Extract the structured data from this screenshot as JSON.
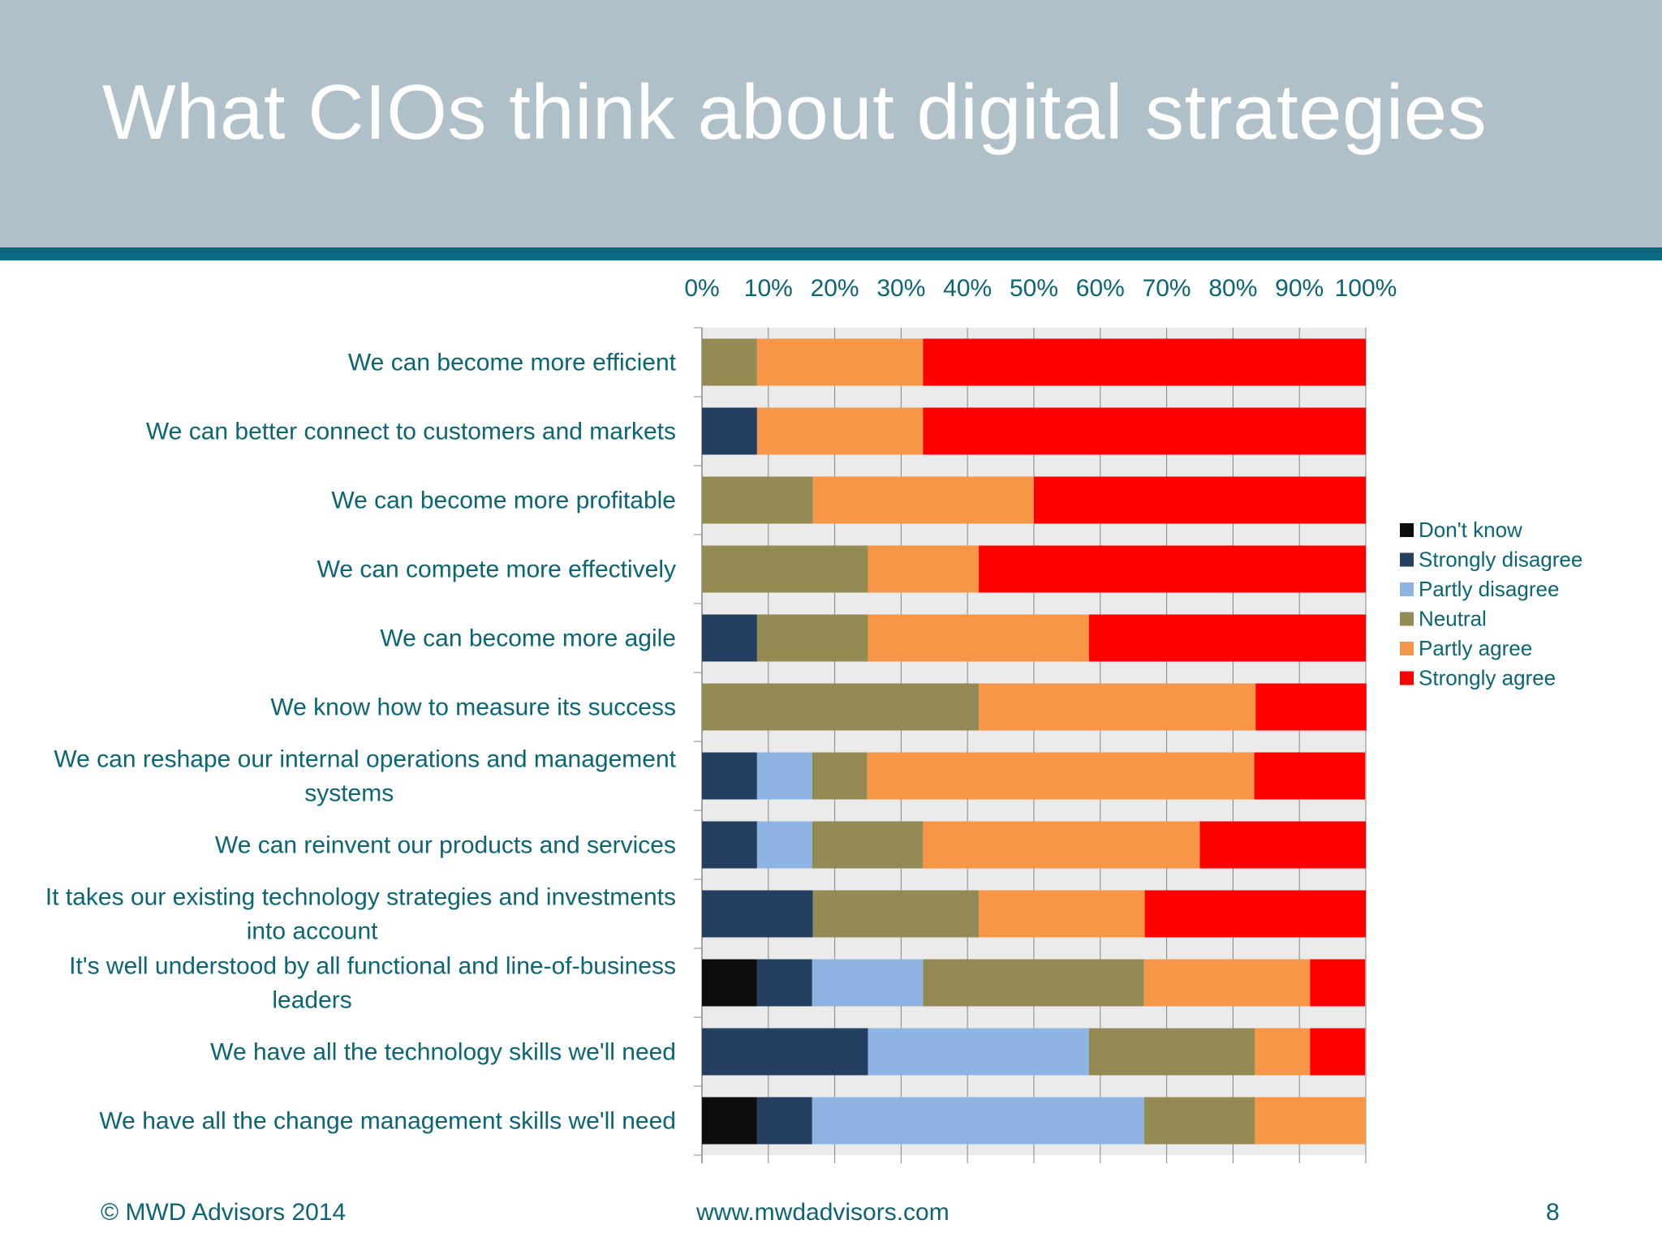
{
  "slide": {
    "title": "What CIOs think about digital strategies"
  },
  "footer": {
    "copyright": "© MWD Advisors 2014",
    "url": "www.mwdadvisors.com",
    "page_number": "8"
  },
  "chart_data": {
    "type": "bar",
    "orientation": "horizontal",
    "stacked": "percent",
    "xlim": [
      0,
      100
    ],
    "tick_labels": [
      "0%",
      "10%",
      "20%",
      "30%",
      "40%",
      "50%",
      "60%",
      "70%",
      "80%",
      "90%",
      "100%"
    ],
    "grid": true,
    "legend_position": "right",
    "categories": [
      [
        "We can become more efficient"
      ],
      [
        "We can better connect to customers and markets"
      ],
      [
        "We can become more profitable"
      ],
      [
        "We can compete more effectively"
      ],
      [
        "We can become more agile"
      ],
      [
        "We know how to measure its success"
      ],
      [
        "We can reshape our internal operations and management",
        "systems"
      ],
      [
        "We can reinvent our products and services"
      ],
      [
        "It takes our existing technology strategies and investments",
        "into account"
      ],
      [
        "It's well understood by all functional and line-of-business",
        "leaders"
      ],
      [
        "We have all the technology skills we'll need"
      ],
      [
        "We have all the change management skills we'll need"
      ]
    ],
    "series": [
      {
        "name": "Don't know",
        "color": "#0d0d0d",
        "values": [
          0,
          0,
          0,
          0,
          0,
          0,
          0,
          0,
          0,
          8.3,
          0,
          8.3
        ]
      },
      {
        "name": "Strongly disagree",
        "color": "#243f60",
        "values": [
          0,
          8.3,
          0,
          0,
          8.3,
          0,
          8.3,
          8.3,
          16.7,
          8.3,
          25,
          8.3
        ]
      },
      {
        "name": "Partly disagree",
        "color": "#8eb4e3",
        "values": [
          0,
          0,
          0,
          0,
          0,
          0,
          8.3,
          8.3,
          0,
          16.7,
          33.3,
          50
        ]
      },
      {
        "name": "Neutral",
        "color": "#948a54",
        "values": [
          8.3,
          0,
          16.7,
          25,
          16.7,
          41.7,
          8.3,
          16.7,
          25,
          33.3,
          25,
          16.7
        ]
      },
      {
        "name": "Partly agree",
        "color": "#f79646",
        "values": [
          25,
          25,
          33.3,
          16.7,
          33.3,
          41.7,
          58.3,
          41.7,
          25,
          25,
          8.3,
          16.7
        ]
      },
      {
        "name": "Strongly agree",
        "color": "#ff0000",
        "values": [
          66.7,
          66.7,
          50,
          58.3,
          41.7,
          16.7,
          16.7,
          25,
          33.3,
          8.3,
          8.3,
          0
        ]
      }
    ],
    "band_color": "#ebebeb",
    "grid_color": "#868686"
  }
}
